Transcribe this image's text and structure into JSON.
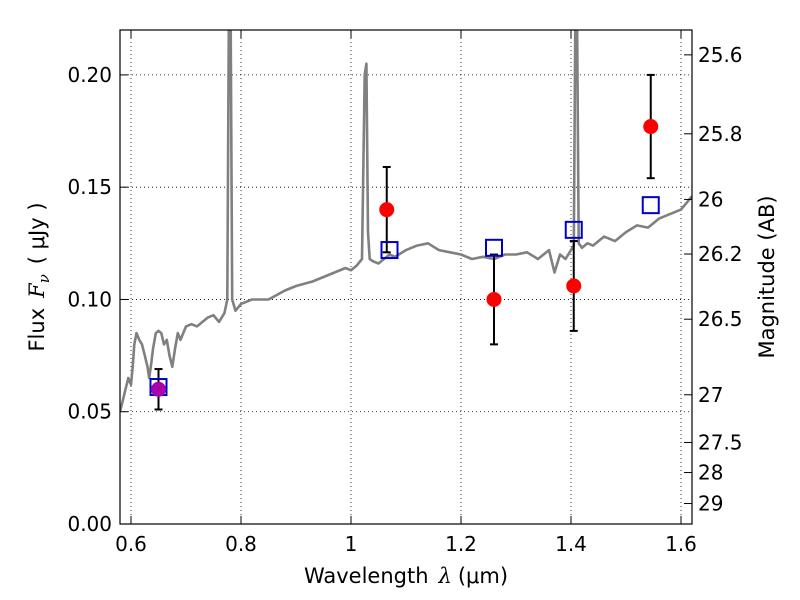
{
  "chart_data": {
    "type": "line",
    "xlabel_text": "Wavelength",
    "xlabel_symbol": "λ",
    "xlabel_unit": "(μm)",
    "ylabel_text": "Flux",
    "ylabel_symbol": "F",
    "ylabel_sub": "ν",
    "ylabel_unit": "( μJy )",
    "y2label": "Magnitude (AB)",
    "xlim": [
      0.58,
      1.62
    ],
    "ylim": [
      0,
      0.22
    ],
    "x_ticks": [
      0.6,
      0.8,
      1.0,
      1.2,
      1.4,
      1.6
    ],
    "x_tick_labels": [
      "0.6",
      "0.8",
      "1",
      "1.2",
      "1.4",
      "1.6"
    ],
    "y_ticks": [
      0,
      0.05,
      0.1,
      0.15,
      0.2
    ],
    "y_tick_labels": [
      "0.00",
      "0.05",
      "0.10",
      "0.15",
      "0.20"
    ],
    "y2_ticks": [
      {
        "mag": 25.6,
        "label": "25.6"
      },
      {
        "mag": 25.8,
        "label": "25.8"
      },
      {
        "mag": 26,
        "label": "26"
      },
      {
        "mag": 26.2,
        "label": "26.2"
      },
      {
        "mag": 26.5,
        "label": "26.5"
      },
      {
        "mag": 27,
        "label": "27"
      },
      {
        "mag": 27.5,
        "label": "27.5"
      },
      {
        "mag": 28,
        "label": "28"
      },
      {
        "mag": 29,
        "label": "29"
      }
    ],
    "grid": true,
    "colors": {
      "spectrum": "#808080",
      "observed": "#ff0000",
      "observed_first": "#aa00aa",
      "model": "#0000cc",
      "errorbar": "#000000"
    },
    "series": [
      {
        "kind": "spectrum",
        "x": [
          0.58,
          0.585,
          0.59,
          0.595,
          0.6,
          0.603,
          0.606,
          0.61,
          0.615,
          0.62,
          0.625,
          0.63,
          0.633,
          0.637,
          0.64,
          0.645,
          0.65,
          0.655,
          0.66,
          0.665,
          0.67,
          0.675,
          0.68,
          0.685,
          0.69,
          0.7,
          0.71,
          0.72,
          0.73,
          0.74,
          0.75,
          0.76,
          0.77,
          0.775,
          0.778,
          0.781,
          0.784,
          0.79,
          0.8,
          0.82,
          0.85,
          0.88,
          0.9,
          0.93,
          0.95,
          0.97,
          0.99,
          1.0,
          1.01,
          1.02,
          1.025,
          1.028,
          1.031,
          1.034,
          1.04,
          1.05,
          1.06,
          1.07,
          1.08,
          1.1,
          1.12,
          1.14,
          1.16,
          1.18,
          1.2,
          1.22,
          1.24,
          1.26,
          1.28,
          1.3,
          1.32,
          1.34,
          1.36,
          1.37,
          1.38,
          1.39,
          1.4,
          1.405,
          1.408,
          1.411,
          1.414,
          1.42,
          1.43,
          1.44,
          1.46,
          1.48,
          1.5,
          1.52,
          1.54,
          1.56,
          1.58,
          1.6,
          1.61,
          1.62
        ],
        "y": [
          0.05,
          0.055,
          0.06,
          0.065,
          0.062,
          0.07,
          0.08,
          0.085,
          0.082,
          0.08,
          0.075,
          0.07,
          0.065,
          0.072,
          0.078,
          0.085,
          0.086,
          0.085,
          0.08,
          0.082,
          0.075,
          0.07,
          0.078,
          0.085,
          0.082,
          0.088,
          0.089,
          0.088,
          0.09,
          0.092,
          0.093,
          0.09,
          0.094,
          0.1,
          0.23,
          0.23,
          0.1,
          0.095,
          0.098,
          0.1,
          0.1,
          0.104,
          0.106,
          0.108,
          0.11,
          0.112,
          0.114,
          0.113,
          0.115,
          0.118,
          0.2,
          0.205,
          0.13,
          0.118,
          0.117,
          0.116,
          0.118,
          0.12,
          0.119,
          0.122,
          0.124,
          0.125,
          0.122,
          0.121,
          0.12,
          0.118,
          0.119,
          0.118,
          0.12,
          0.12,
          0.121,
          0.118,
          0.122,
          0.112,
          0.12,
          0.118,
          0.122,
          0.124,
          0.23,
          0.23,
          0.125,
          0.123,
          0.125,
          0.124,
          0.128,
          0.126,
          0.13,
          0.133,
          0.132,
          0.136,
          0.138,
          0.14,
          0.143,
          0.146
        ]
      },
      {
        "kind": "observed",
        "x": [
          0.65,
          1.065,
          1.26,
          1.405,
          1.545
        ],
        "y": [
          0.06,
          0.14,
          0.1,
          0.106,
          0.177
        ],
        "yerr": [
          0.009,
          0.019,
          0.02,
          0.02,
          0.023
        ]
      },
      {
        "kind": "model",
        "x": [
          0.65,
          1.07,
          1.26,
          1.405,
          1.545
        ],
        "y": [
          0.061,
          0.122,
          0.123,
          0.131,
          0.142
        ]
      }
    ]
  }
}
